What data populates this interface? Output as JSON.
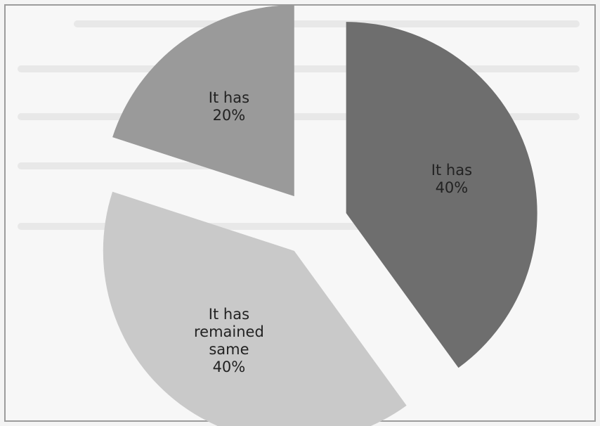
{
  "chart_data": {
    "type": "pie",
    "title": "",
    "slices": [
      {
        "label_lines": [
          "It has"
        ],
        "value": 40,
        "value_label": "40%",
        "color": "#6e6e6e"
      },
      {
        "label_lines": [
          "It has",
          "remained",
          "same"
        ],
        "value": 40,
        "value_label": "40%",
        "color": "#c9c9c9"
      },
      {
        "label_lines": [
          "It has"
        ],
        "value": 20,
        "value_label": "20%",
        "color": "#9a9a9a"
      }
    ],
    "legend": "none",
    "data_labels": "inside"
  }
}
